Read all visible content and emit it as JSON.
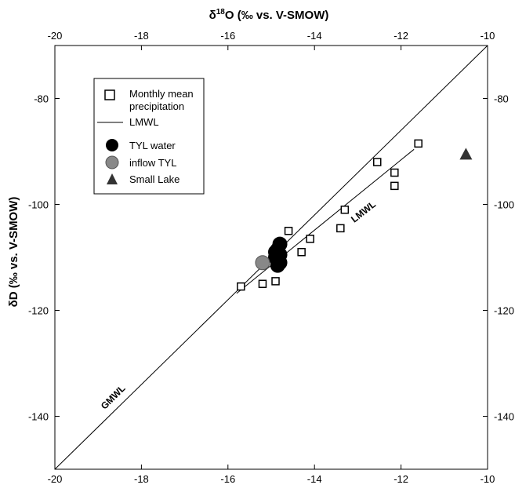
{
  "chart_data": {
    "type": "scatter",
    "title": "",
    "xlabel_top": "δ18O (‰ vs. V-SMOW)",
    "xlabel_top_parts": {
      "pre": "δ",
      "sup": "18",
      "post": "O (‰ vs. V-SMOW)"
    },
    "ylabel": "δD (‰ vs. V-SMOW)",
    "xlim": [
      -20,
      -10
    ],
    "ylim": [
      -150,
      -70
    ],
    "x_ticks": [
      -20,
      -18,
      -16,
      -14,
      -12,
      -10
    ],
    "x_tick_labels": [
      "-20",
      "-18",
      "-16",
      "-14",
      "-12",
      "-10"
    ],
    "y_ticks": [
      -80,
      -100,
      -120,
      -140
    ],
    "y_tick_labels": [
      "-80",
      "-100",
      "-120",
      "-140"
    ],
    "grid": false,
    "legend_position": "top-left",
    "legend": {
      "precip_line1": "Monthly mean",
      "precip_line2": "precipitation",
      "lmwl": "LMWL",
      "tyl": "TYL water",
      "inflow": "inflow TYL",
      "lake": "Small Lake"
    },
    "line_labels": {
      "gmwl": "GMWL",
      "lmwl": "LMWL"
    },
    "lines": [
      {
        "name": "GMWL",
        "x": [
          -20,
          -10
        ],
        "y": [
          -150,
          -70
        ]
      },
      {
        "name": "LMWL",
        "x": [
          -15.8,
          -11.7
        ],
        "y": [
          -116.8,
          -89.6
        ]
      }
    ],
    "series": [
      {
        "name": "Monthly mean precipitation",
        "marker": "open-square",
        "color": "#000000",
        "points": [
          [
            -15.7,
            -115.5
          ],
          [
            -15.2,
            -115.0
          ],
          [
            -14.9,
            -114.5
          ],
          [
            -14.6,
            -105.0
          ],
          [
            -14.1,
            -106.5
          ],
          [
            -14.3,
            -109.0
          ],
          [
            -13.4,
            -104.5
          ],
          [
            -13.3,
            -101.0
          ],
          [
            -12.55,
            -92.0
          ],
          [
            -12.15,
            -94.0
          ],
          [
            -12.15,
            -96.5
          ],
          [
            -11.6,
            -88.5
          ]
        ]
      },
      {
        "name": "TYL water",
        "marker": "filled-circle",
        "color": "#000000",
        "points": [
          [
            -14.8,
            -107.5
          ],
          [
            -14.85,
            -108.5
          ],
          [
            -14.9,
            -109.0
          ],
          [
            -14.8,
            -109.5
          ],
          [
            -14.9,
            -110.0
          ],
          [
            -14.85,
            -110.5
          ],
          [
            -14.8,
            -111.0
          ],
          [
            -14.85,
            -111.5
          ]
        ]
      },
      {
        "name": "inflow TYL",
        "marker": "filled-circle",
        "color": "#888888",
        "points": [
          [
            -15.2,
            -111.0
          ]
        ]
      },
      {
        "name": "Small Lake",
        "marker": "triangle",
        "color": "#333333",
        "points": [
          [
            -10.5,
            -90.5
          ]
        ]
      }
    ]
  }
}
